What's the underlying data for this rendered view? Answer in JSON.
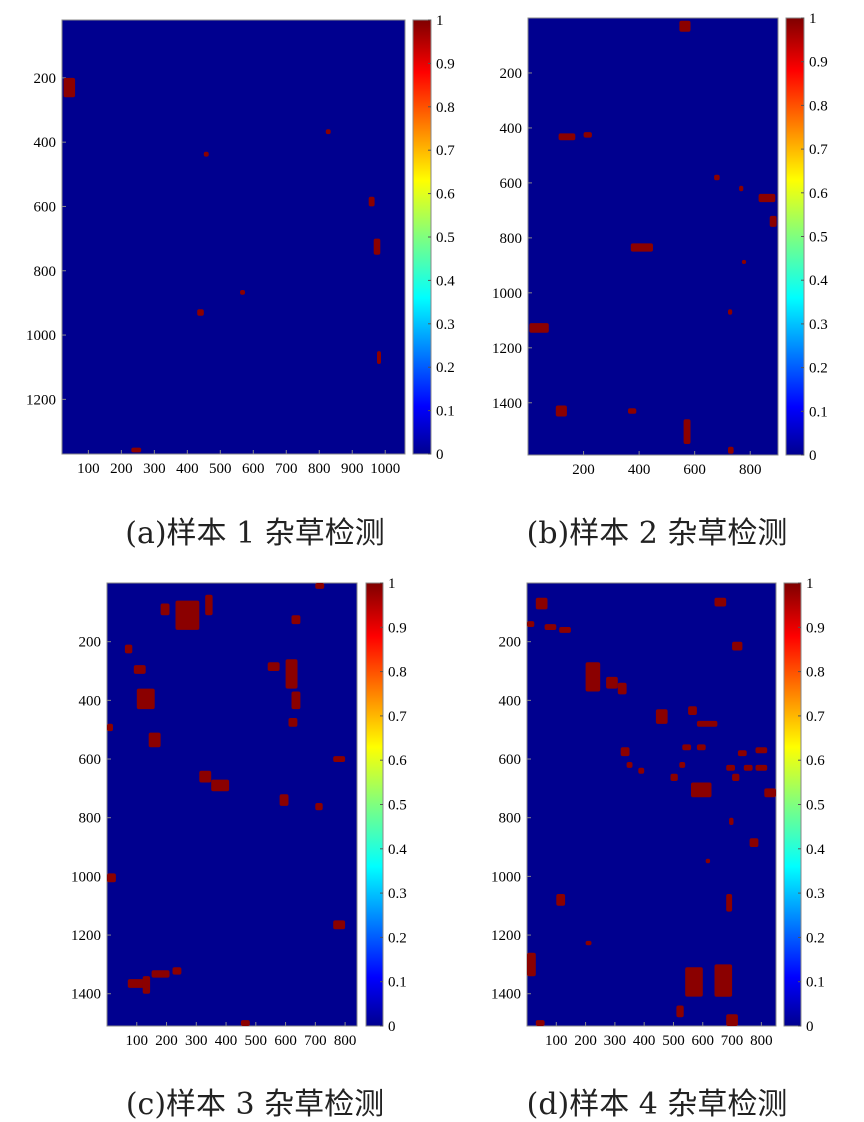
{
  "colors": {
    "background": "#00008f",
    "weed": "#8b0000",
    "colormap": [
      "#00008f",
      "#0000ff",
      "#007fff",
      "#00ffff",
      "#7fff7f",
      "#ffff00",
      "#ff7f00",
      "#ff0000",
      "#7f0000"
    ]
  },
  "chart_data": [
    {
      "type": "heatmap",
      "caption": "(a)样本 1 杂草检测",
      "x_ticks": [
        100,
        200,
        300,
        400,
        500,
        600,
        700,
        800,
        900,
        1000
      ],
      "y_ticks": [
        200,
        400,
        600,
        800,
        1000,
        1200
      ],
      "xlim": [
        20,
        1060
      ],
      "ylim": [
        1370,
        20
      ],
      "colorbar": {
        "range": [
          0,
          1
        ],
        "ticks": [
          "0",
          "0.1",
          "0.2",
          "0.3",
          "0.4",
          "0.5",
          "0.6",
          "0.7",
          "0.8",
          "0.9",
          "1"
        ]
      },
      "weed_regions": [
        {
          "x": 25,
          "y": 200,
          "w": 35,
          "h": 60
        },
        {
          "x": 450,
          "y": 430,
          "w": 15,
          "h": 15
        },
        {
          "x": 820,
          "y": 360,
          "w": 15,
          "h": 15
        },
        {
          "x": 950,
          "y": 570,
          "w": 18,
          "h": 30
        },
        {
          "x": 965,
          "y": 700,
          "w": 20,
          "h": 50
        },
        {
          "x": 560,
          "y": 860,
          "w": 15,
          "h": 15
        },
        {
          "x": 430,
          "y": 920,
          "w": 20,
          "h": 20
        },
        {
          "x": 975,
          "y": 1050,
          "w": 12,
          "h": 40
        },
        {
          "x": 230,
          "y": 1350,
          "w": 30,
          "h": 15
        }
      ]
    },
    {
      "type": "heatmap",
      "caption": "(b)样本 2 杂草检测",
      "x_ticks": [
        200,
        400,
        600,
        800
      ],
      "y_ticks": [
        200,
        400,
        600,
        800,
        1000,
        1200,
        1400
      ],
      "xlim": [
        0,
        900
      ],
      "ylim": [
        1590,
        0
      ],
      "colorbar": {
        "range": [
          0,
          1
        ],
        "ticks": [
          "0",
          "0.1",
          "0.2",
          "0.3",
          "0.4",
          "0.5",
          "0.6",
          "0.7",
          "0.8",
          "0.9",
          "1"
        ]
      },
      "weed_regions": [
        {
          "x": 545,
          "y": 10,
          "w": 40,
          "h": 40
        },
        {
          "x": 110,
          "y": 420,
          "w": 60,
          "h": 25
        },
        {
          "x": 200,
          "y": 415,
          "w": 30,
          "h": 20
        },
        {
          "x": 670,
          "y": 570,
          "w": 20,
          "h": 20
        },
        {
          "x": 760,
          "y": 610,
          "w": 15,
          "h": 20
        },
        {
          "x": 830,
          "y": 640,
          "w": 60,
          "h": 30
        },
        {
          "x": 870,
          "y": 720,
          "w": 25,
          "h": 40
        },
        {
          "x": 370,
          "y": 820,
          "w": 80,
          "h": 30
        },
        {
          "x": 770,
          "y": 880,
          "w": 15,
          "h": 15
        },
        {
          "x": 720,
          "y": 1060,
          "w": 15,
          "h": 20
        },
        {
          "x": 5,
          "y": 1110,
          "w": 70,
          "h": 35
        },
        {
          "x": 100,
          "y": 1410,
          "w": 40,
          "h": 40
        },
        {
          "x": 360,
          "y": 1420,
          "w": 30,
          "h": 20
        },
        {
          "x": 560,
          "y": 1460,
          "w": 25,
          "h": 90
        },
        {
          "x": 720,
          "y": 1560,
          "w": 20,
          "h": 25
        }
      ]
    },
    {
      "type": "heatmap",
      "caption": "(c)样本 3 杂草检测",
      "x_ticks": [
        100,
        200,
        300,
        400,
        500,
        600,
        700,
        800
      ],
      "y_ticks": [
        200,
        400,
        600,
        800,
        1000,
        1200,
        1400
      ],
      "xlim": [
        0,
        840
      ],
      "ylim": [
        1510,
        0
      ],
      "colorbar": {
        "range": [
          0,
          1
        ],
        "ticks": [
          "0",
          "0.1",
          "0.2",
          "0.3",
          "0.4",
          "0.5",
          "0.6",
          "0.7",
          "0.8",
          "0.9",
          "1"
        ]
      },
      "weed_regions": [
        {
          "x": 180,
          "y": 70,
          "w": 30,
          "h": 40
        },
        {
          "x": 230,
          "y": 60,
          "w": 80,
          "h": 100
        },
        {
          "x": 330,
          "y": 40,
          "w": 25,
          "h": 70
        },
        {
          "x": 700,
          "y": 0,
          "w": 30,
          "h": 20
        },
        {
          "x": 620,
          "y": 110,
          "w": 30,
          "h": 30
        },
        {
          "x": 60,
          "y": 210,
          "w": 25,
          "h": 30
        },
        {
          "x": 90,
          "y": 280,
          "w": 40,
          "h": 30
        },
        {
          "x": 100,
          "y": 360,
          "w": 60,
          "h": 70
        },
        {
          "x": 540,
          "y": 270,
          "w": 40,
          "h": 30
        },
        {
          "x": 600,
          "y": 260,
          "w": 40,
          "h": 100
        },
        {
          "x": 620,
          "y": 370,
          "w": 30,
          "h": 60
        },
        {
          "x": 610,
          "y": 460,
          "w": 30,
          "h": 30
        },
        {
          "x": 140,
          "y": 510,
          "w": 40,
          "h": 50
        },
        {
          "x": 0,
          "y": 480,
          "w": 20,
          "h": 25
        },
        {
          "x": 310,
          "y": 640,
          "w": 40,
          "h": 40
        },
        {
          "x": 350,
          "y": 670,
          "w": 60,
          "h": 40
        },
        {
          "x": 580,
          "y": 720,
          "w": 30,
          "h": 40
        },
        {
          "x": 700,
          "y": 750,
          "w": 25,
          "h": 25
        },
        {
          "x": 760,
          "y": 590,
          "w": 40,
          "h": 20
        },
        {
          "x": 0,
          "y": 990,
          "w": 30,
          "h": 30
        },
        {
          "x": 760,
          "y": 1150,
          "w": 40,
          "h": 30
        },
        {
          "x": 70,
          "y": 1350,
          "w": 60,
          "h": 30
        },
        {
          "x": 120,
          "y": 1340,
          "w": 25,
          "h": 60
        },
        {
          "x": 150,
          "y": 1320,
          "w": 60,
          "h": 25
        },
        {
          "x": 220,
          "y": 1310,
          "w": 30,
          "h": 25
        },
        {
          "x": 450,
          "y": 1490,
          "w": 30,
          "h": 20
        }
      ]
    },
    {
      "type": "heatmap",
      "caption": "(d)样本 4 杂草检测",
      "x_ticks": [
        100,
        200,
        300,
        400,
        500,
        600,
        700,
        800
      ],
      "y_ticks": [
        200,
        400,
        600,
        800,
        1000,
        1200,
        1400
      ],
      "xlim": [
        0,
        850
      ],
      "ylim": [
        1510,
        0
      ],
      "colorbar": {
        "range": [
          0,
          1
        ],
        "ticks": [
          "0",
          "0.1",
          "0.2",
          "0.3",
          "0.4",
          "0.5",
          "0.6",
          "0.7",
          "0.8",
          "0.9",
          "1"
        ]
      },
      "weed_regions": [
        {
          "x": 30,
          "y": 50,
          "w": 40,
          "h": 40
        },
        {
          "x": 640,
          "y": 50,
          "w": 40,
          "h": 30
        },
        {
          "x": 0,
          "y": 130,
          "w": 25,
          "h": 20
        },
        {
          "x": 60,
          "y": 140,
          "w": 40,
          "h": 20
        },
        {
          "x": 110,
          "y": 150,
          "w": 40,
          "h": 20
        },
        {
          "x": 700,
          "y": 200,
          "w": 35,
          "h": 30
        },
        {
          "x": 200,
          "y": 270,
          "w": 50,
          "h": 100
        },
        {
          "x": 270,
          "y": 320,
          "w": 40,
          "h": 40
        },
        {
          "x": 310,
          "y": 340,
          "w": 30,
          "h": 40
        },
        {
          "x": 440,
          "y": 430,
          "w": 40,
          "h": 50
        },
        {
          "x": 550,
          "y": 420,
          "w": 30,
          "h": 30
        },
        {
          "x": 580,
          "y": 470,
          "w": 70,
          "h": 20
        },
        {
          "x": 320,
          "y": 560,
          "w": 30,
          "h": 30
        },
        {
          "x": 340,
          "y": 610,
          "w": 20,
          "h": 20
        },
        {
          "x": 380,
          "y": 630,
          "w": 20,
          "h": 20
        },
        {
          "x": 530,
          "y": 550,
          "w": 30,
          "h": 20
        },
        {
          "x": 580,
          "y": 550,
          "w": 30,
          "h": 20
        },
        {
          "x": 520,
          "y": 610,
          "w": 20,
          "h": 20
        },
        {
          "x": 490,
          "y": 650,
          "w": 25,
          "h": 25
        },
        {
          "x": 560,
          "y": 680,
          "w": 70,
          "h": 50
        },
        {
          "x": 680,
          "y": 620,
          "w": 30,
          "h": 20
        },
        {
          "x": 740,
          "y": 620,
          "w": 30,
          "h": 20
        },
        {
          "x": 780,
          "y": 620,
          "w": 40,
          "h": 20
        },
        {
          "x": 720,
          "y": 570,
          "w": 30,
          "h": 20
        },
        {
          "x": 780,
          "y": 560,
          "w": 40,
          "h": 20
        },
        {
          "x": 700,
          "y": 650,
          "w": 25,
          "h": 25
        },
        {
          "x": 810,
          "y": 700,
          "w": 40,
          "h": 30
        },
        {
          "x": 690,
          "y": 800,
          "w": 15,
          "h": 25
        },
        {
          "x": 760,
          "y": 870,
          "w": 30,
          "h": 30
        },
        {
          "x": 610,
          "y": 940,
          "w": 15,
          "h": 15
        },
        {
          "x": 100,
          "y": 1060,
          "w": 30,
          "h": 40
        },
        {
          "x": 680,
          "y": 1060,
          "w": 20,
          "h": 60
        },
        {
          "x": 200,
          "y": 1220,
          "w": 20,
          "h": 15
        },
        {
          "x": 0,
          "y": 1260,
          "w": 30,
          "h": 80
        },
        {
          "x": 540,
          "y": 1310,
          "w": 60,
          "h": 100
        },
        {
          "x": 640,
          "y": 1300,
          "w": 60,
          "h": 110
        },
        {
          "x": 510,
          "y": 1440,
          "w": 25,
          "h": 40
        },
        {
          "x": 680,
          "y": 1470,
          "w": 40,
          "h": 40
        },
        {
          "x": 30,
          "y": 1490,
          "w": 30,
          "h": 20
        }
      ]
    }
  ]
}
